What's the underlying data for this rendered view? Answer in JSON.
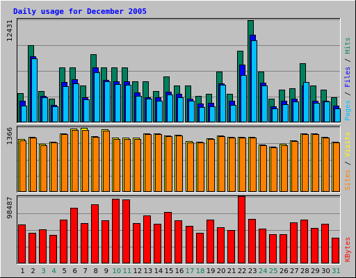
{
  "chart_data": {
    "type": "bar",
    "title": "Daily usage for December 2005",
    "colors": {
      "frame_bg": "#c0c0c0",
      "plot_bg": "#c0c0c0",
      "title": "#0000ff",
      "hits": "#00805f",
      "files": "#0000ff",
      "pages": "#00c0ff",
      "visits": "#ffff00",
      "sites": "#ff8000",
      "kbytes": "#ff0000",
      "weekend_label": "#00805f",
      "weekday_label": "#000000",
      "grid": "#808080"
    },
    "days": [
      "1",
      "2",
      "3",
      "4",
      "5",
      "6",
      "7",
      "8",
      "9",
      "10",
      "11",
      "12",
      "13",
      "14",
      "15",
      "16",
      "17",
      "18",
      "19",
      "20",
      "21",
      "22",
      "23",
      "24",
      "25",
      "26",
      "27",
      "28",
      "29",
      "30",
      "31"
    ],
    "weekend_days": [
      "3",
      "4",
      "10",
      "11",
      "17",
      "18",
      "24",
      "25",
      "31"
    ],
    "panels": [
      {
        "name": "Pages / Files / Hits",
        "max_label": "12431",
        "ymax": 12431,
        "labels": [
          "Pages",
          "Files",
          "Hits"
        ],
        "series": [
          {
            "name": "Hits",
            "values": [
              3560,
              9350,
              3810,
              2870,
              6650,
              6650,
              4420,
              8200,
              6650,
              6650,
              6650,
              4920,
              4920,
              3810,
              5530,
              4420,
              4420,
              3190,
              3440,
              6130,
              3440,
              8690,
              12330,
              6130,
              2870,
              3970,
              4150,
              7150,
              4420,
              3970,
              3030
            ]
          },
          {
            "name": "Files",
            "values": [
              2620,
              8000,
              3200,
              2140,
              4840,
              5170,
              3030,
              6610,
              5090,
              4920,
              4920,
              3610,
              3030,
              3030,
              3690,
              3440,
              2860,
              2290,
              2380,
              4740,
              2620,
              6990,
              10570,
              4770,
              1920,
              2620,
              2870,
              4430,
              2620,
              2620,
              2040
            ]
          },
          {
            "name": "Pages",
            "values": [
              2050,
              7740,
              3030,
              1910,
              4350,
              4670,
              2780,
              6070,
              4920,
              4590,
              4510,
              3190,
              2860,
              2620,
              3360,
              3030,
              2620,
              1850,
              1970,
              4510,
              2130,
              5740,
              9920,
              4430,
              1640,
              2210,
              2540,
              4840,
              2380,
              2540,
              1640
            ]
          }
        ]
      },
      {
        "name": "Sites / Visits",
        "max_label": "1366",
        "ymax": 1366,
        "labels": [
          "Sites",
          "Visits"
        ],
        "series": [
          {
            "name": "Visits",
            "values": [
              1110,
              1160,
              1010,
              1060,
              1240,
              1330,
              1350,
              1180,
              1320,
              1140,
              1140,
              1140,
              1240,
              1240,
              1190,
              1210,
              1070,
              1060,
              1130,
              1190,
              1160,
              1160,
              1160,
              1000,
              960,
              1010,
              1090,
              1240,
              1240,
              1160,
              1060
            ]
          },
          {
            "name": "Sites",
            "values": [
              1090,
              1140,
              990,
              1040,
              1220,
              1310,
              1300,
              1160,
              1290,
              1120,
              1120,
              1120,
              1220,
              1220,
              1170,
              1190,
              1050,
              1040,
              1110,
              1170,
              1140,
              1140,
              1140,
              980,
              940,
              990,
              1070,
              1220,
              1220,
              1140,
              1040
            ]
          }
        ]
      },
      {
        "name": "KBytes",
        "max_label": "98487",
        "ymax": 98487,
        "labels": [
          "KBytes"
        ],
        "series": [
          {
            "name": "KBytes",
            "values": [
              57400,
              45200,
              50600,
              41900,
              65000,
              81700,
              59000,
              87600,
              64100,
              95000,
              94000,
              59200,
              71000,
              58600,
              76100,
              63900,
              55200,
              45300,
              64900,
              53000,
              49500,
              100000,
              65400,
              51500,
              42600,
              42600,
              60600,
              65000,
              52600,
              58900,
              37700
            ]
          }
        ]
      }
    ]
  }
}
